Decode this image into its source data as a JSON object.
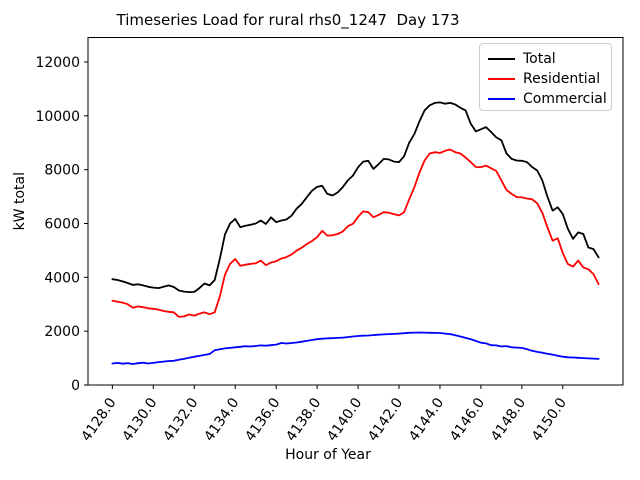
{
  "chart_data": {
    "type": "line",
    "title": "Timeseries Load for rural rhs0_1247  Day 173",
    "xlabel": "Hour of Year",
    "ylabel": "kW total",
    "grid": false,
    "legend_position": "upper right",
    "xlim": [
      4126.81,
      4152.94
    ],
    "ylim": [
      0,
      12910
    ],
    "x_ticks": [
      4128,
      4130,
      4132,
      4134,
      4136,
      4138,
      4140,
      4142,
      4144,
      4146,
      4148,
      4150
    ],
    "x_tick_labels": [
      "4128.0",
      "4130.0",
      "4132.0",
      "4134.0",
      "4136.0",
      "4138.0",
      "4140.0",
      "4142.0",
      "4144.0",
      "4146.0",
      "4148.0",
      "4150.0"
    ],
    "y_ticks": [
      0,
      2000,
      4000,
      6000,
      8000,
      10000,
      12000
    ],
    "y_tick_labels": [
      "0",
      "2000",
      "4000",
      "6000",
      "8000",
      "10000",
      "12000"
    ],
    "x_tick_rotation_deg": 55,
    "x": [
      4128.0,
      4128.25,
      4128.5,
      4128.75,
      4129.0,
      4129.25,
      4129.5,
      4129.75,
      4130.0,
      4130.25,
      4130.5,
      4130.75,
      4131.0,
      4131.25,
      4131.5,
      4131.75,
      4132.0,
      4132.25,
      4132.5,
      4132.75,
      4133.0,
      4133.25,
      4133.5,
      4133.75,
      4134.0,
      4134.25,
      4134.5,
      4134.75,
      4135.0,
      4135.25,
      4135.5,
      4135.75,
      4136.0,
      4136.25,
      4136.5,
      4136.75,
      4137.0,
      4137.25,
      4137.5,
      4137.75,
      4138.0,
      4138.25,
      4138.5,
      4138.75,
      4139.0,
      4139.25,
      4139.5,
      4139.75,
      4140.0,
      4140.25,
      4140.5,
      4140.75,
      4141.0,
      4141.25,
      4141.5,
      4141.75,
      4142.0,
      4142.25,
      4142.5,
      4142.75,
      4143.0,
      4143.25,
      4143.5,
      4143.75,
      4144.0,
      4144.25,
      4144.5,
      4144.75,
      4145.0,
      4145.25,
      4145.5,
      4145.75,
      4146.0,
      4146.25,
      4146.5,
      4146.75,
      4147.0,
      4147.25,
      4147.5,
      4147.75,
      4148.0,
      4148.25,
      4148.5,
      4148.75,
      4149.0,
      4149.25,
      4149.5,
      4149.75,
      4150.0,
      4150.25,
      4150.5,
      4150.75,
      4151.0,
      4151.25,
      4151.5,
      4151.75
    ],
    "series": [
      {
        "name": "Total",
        "color": "#000000",
        "values": [
          3930,
          3900,
          3850,
          3790,
          3720,
          3740,
          3700,
          3650,
          3620,
          3600,
          3650,
          3700,
          3640,
          3510,
          3470,
          3450,
          3460,
          3600,
          3770,
          3700,
          3900,
          4700,
          5600,
          6000,
          6170,
          5860,
          5920,
          5950,
          6000,
          6110,
          5980,
          6230,
          6050,
          6110,
          6150,
          6290,
          6550,
          6730,
          6980,
          7220,
          7360,
          7400,
          7100,
          7040,
          7150,
          7350,
          7600,
          7780,
          8090,
          8300,
          8330,
          8030,
          8200,
          8400,
          8380,
          8300,
          8280,
          8500,
          9000,
          9330,
          9800,
          10200,
          10390,
          10480,
          10500,
          10450,
          10480,
          10420,
          10300,
          10200,
          9710,
          9420,
          9500,
          9580,
          9400,
          9200,
          9090,
          8600,
          8400,
          8340,
          8330,
          8280,
          8100,
          7970,
          7600,
          7000,
          6480,
          6600,
          6350,
          5800,
          5430,
          5670,
          5610,
          5110,
          5050,
          4740
        ]
      },
      {
        "name": "Residential",
        "color": "#ff0000",
        "values": [
          3130,
          3100,
          3060,
          3000,
          2870,
          2920,
          2890,
          2850,
          2830,
          2800,
          2750,
          2720,
          2700,
          2530,
          2550,
          2620,
          2580,
          2650,
          2700,
          2630,
          2700,
          3300,
          4100,
          4500,
          4680,
          4430,
          4470,
          4500,
          4520,
          4620,
          4450,
          4550,
          4600,
          4700,
          4750,
          4850,
          4990,
          5100,
          5240,
          5350,
          5490,
          5730,
          5550,
          5560,
          5610,
          5700,
          5900,
          5990,
          6250,
          6450,
          6420,
          6230,
          6320,
          6420,
          6400,
          6350,
          6300,
          6420,
          6900,
          7350,
          7900,
          8340,
          8600,
          8650,
          8620,
          8700,
          8750,
          8650,
          8600,
          8450,
          8280,
          8100,
          8090,
          8150,
          8050,
          7950,
          7600,
          7250,
          7100,
          6980,
          6970,
          6930,
          6900,
          6750,
          6400,
          5860,
          5360,
          5450,
          4900,
          4490,
          4400,
          4620,
          4370,
          4300,
          4120,
          3750
        ]
      },
      {
        "name": "Commercial",
        "color": "#0000ff",
        "values": [
          800,
          820,
          790,
          810,
          780,
          810,
          830,
          800,
          820,
          850,
          870,
          890,
          900,
          940,
          970,
          1010,
          1050,
          1080,
          1120,
          1150,
          1290,
          1330,
          1360,
          1380,
          1400,
          1420,
          1440,
          1430,
          1450,
          1470,
          1460,
          1480,
          1500,
          1560,
          1540,
          1560,
          1580,
          1610,
          1640,
          1670,
          1700,
          1720,
          1730,
          1740,
          1750,
          1760,
          1780,
          1800,
          1820,
          1830,
          1840,
          1855,
          1870,
          1880,
          1890,
          1900,
          1910,
          1925,
          1940,
          1945,
          1950,
          1945,
          1940,
          1935,
          1930,
          1910,
          1890,
          1850,
          1800,
          1750,
          1700,
          1640,
          1570,
          1545,
          1480,
          1470,
          1430,
          1445,
          1400,
          1390,
          1380,
          1330,
          1270,
          1230,
          1200,
          1160,
          1130,
          1090,
          1050,
          1030,
          1020,
          1010,
          1000,
          990,
          980,
          970
        ]
      }
    ]
  }
}
